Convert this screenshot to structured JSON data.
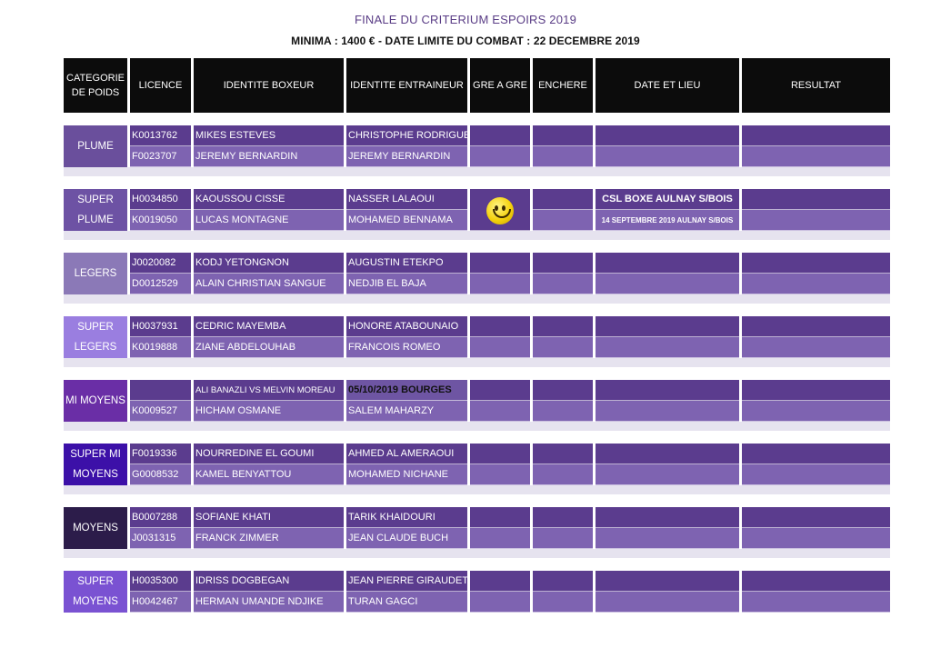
{
  "header": {
    "title": "FINALE DU CRITERIUM ESPOIRS 2019",
    "subtitle": "MINIMA : 1400 € - DATE LIMITE DU COMBAT : 22 DECEMBRE 2019"
  },
  "columns": {
    "cat": "CATEGORIE DE POIDS",
    "licence": "LICENCE",
    "boxeur": "IDENTITE BOXEUR",
    "entraineur": "IDENTITE ENTRAINEUR",
    "gre": "GRE A GRE",
    "enchere": "ENCHERE",
    "date": "DATE ET LIEU",
    "resultat": "RESULTAT"
  },
  "groups": [
    {
      "cat": "PLUME",
      "r1": {
        "licence": "K0013762",
        "boxeur": "MIKES ESTEVES",
        "entraineur": "CHRISTOPHE RODRIGUES"
      },
      "r2": {
        "licence": "F0023707",
        "boxeur": "JEREMY BERNARDIN",
        "entraineur": "JEREMY BERNARDIN"
      }
    },
    {
      "cat": "SUPER PLUME",
      "r1": {
        "licence": "H0034850",
        "boxeur": "KAOUSSOU CISSE",
        "entraineur": "NASSER LALAOUI"
      },
      "r2": {
        "licence": "K0019050",
        "boxeur": "LUCAS MONTAGNE",
        "entraineur": "MOHAMED BENNAMA"
      },
      "date1": "CSL BOXE AULNAY S/BOIS",
      "date2": "14 SEPTEMBRE 2019 AULNAY S/BOIS"
    },
    {
      "cat": "LEGERS",
      "r1": {
        "licence": "J0020082",
        "boxeur": "KODJ YETONGNON",
        "entraineur": "AUGUSTIN ETEKPO"
      },
      "r2": {
        "licence": "D0012529",
        "boxeur": "ALAIN CHRISTIAN SANGUE",
        "entraineur": "NEDJIB EL BAJA"
      }
    },
    {
      "cat": "SUPER LEGERS",
      "r1": {
        "licence": "H0037931",
        "boxeur": "CEDRIC MAYEMBA",
        "entraineur": "HONORE ATABOUNAIO"
      },
      "r2": {
        "licence": "K0019888",
        "boxeur": "ZIANE ABDELOUHAB",
        "entraineur": "FRANCOIS ROMEO"
      }
    },
    {
      "cat": "MI MOYENS",
      "r1": {
        "licence": "",
        "boxeur": "ALI BANAZLI VS MELVIN MOREAU",
        "entraineur": "05/10/2019 BOURGES"
      },
      "r2": {
        "licence": "K0009527",
        "boxeur": "HICHAM OSMANE",
        "entraineur": "SALEM MAHARZY"
      }
    },
    {
      "cat": "SUPER MI MOYENS",
      "r1": {
        "licence": "F0019336",
        "boxeur": "NOURREDINE EL GOUMI",
        "entraineur": "AHMED AL AMERAOUI"
      },
      "r2": {
        "licence": "G0008532",
        "boxeur": "KAMEL BENYATTOU",
        "entraineur": "MOHAMED NICHANE"
      }
    },
    {
      "cat": "MOYENS",
      "r1": {
        "licence": "B0007288",
        "boxeur": "SOFIANE KHATI",
        "entraineur": "TARIK KHAIDOURI"
      },
      "r2": {
        "licence": "J0031315",
        "boxeur": "FRANCK ZIMMER",
        "entraineur": "JEAN CLAUDE BUCH"
      }
    },
    {
      "cat": "SUPER MOYENS",
      "r1": {
        "licence": "H0035300",
        "boxeur": "IDRISS DOGBEGAN",
        "entraineur": "JEAN PIERRE GIRAUDET"
      },
      "r2": {
        "licence": "H0042467",
        "boxeur": "HERMAN UMANDE NDJIKE",
        "entraineur": "TURAN GAGCI"
      }
    }
  ],
  "icons": {
    "gre_smiley": "smiley-face-icon"
  }
}
